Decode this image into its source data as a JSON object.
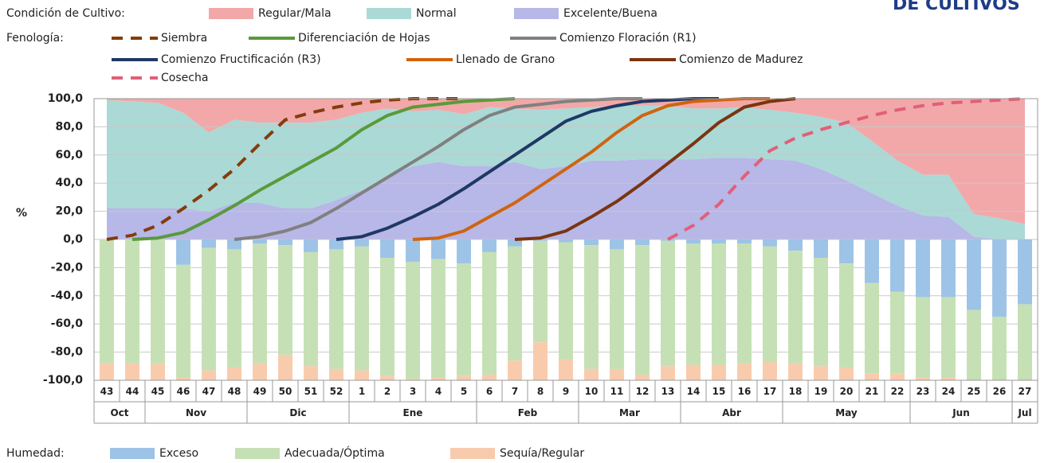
{
  "chart_data": {
    "type": "combo",
    "corner_title": "DE CULTIVOS",
    "y_label": "%",
    "condition_legend_title": "Condición de Cultivo:",
    "phenology_legend_title": "Fenología:",
    "humidity_legend_title": "Humedad:",
    "categories": [
      "43",
      "44",
      "45",
      "46",
      "47",
      "48",
      "49",
      "50",
      "51",
      "52",
      "1",
      "2",
      "3",
      "4",
      "5",
      "6",
      "7",
      "8",
      "9",
      "10",
      "11",
      "12",
      "13",
      "14",
      "15",
      "16",
      "17",
      "18",
      "19",
      "20",
      "21",
      "22",
      "23",
      "24",
      "25",
      "26",
      "27"
    ],
    "months": [
      "Oct",
      null,
      "Nov",
      null,
      null,
      null,
      "Dic",
      null,
      null,
      null,
      "Ene",
      null,
      null,
      null,
      null,
      "Feb",
      null,
      null,
      null,
      "Mar",
      null,
      null,
      null,
      "Abr",
      null,
      null,
      null,
      "May",
      null,
      null,
      null,
      null,
      "Jun",
      null,
      null,
      null,
      "Jul"
    ],
    "ylim": [
      -100,
      100
    ],
    "yticks": [
      {
        "value": 100,
        "label": "100,0"
      },
      {
        "value": 80,
        "label": "80,0"
      },
      {
        "value": 60,
        "label": "60,0"
      },
      {
        "value": 40,
        "label": "40,0"
      },
      {
        "value": 20,
        "label": "20,0"
      },
      {
        "value": 0,
        "label": "0,0"
      },
      {
        "value": -20,
        "label": "-20,0"
      },
      {
        "value": -40,
        "label": "-40,0"
      },
      {
        "value": -60,
        "label": "-60,0"
      },
      {
        "value": -80,
        "label": "-80,0"
      },
      {
        "value": -100,
        "label": "-100,0"
      }
    ],
    "grid": true,
    "series": [
      {
        "name": "Regular/Mala",
        "type": "area",
        "color": "#f2a8a8",
        "values": [
          1,
          2,
          3,
          10,
          24,
          15,
          17,
          17,
          17,
          15,
          10,
          7,
          9,
          8,
          11,
          6,
          7,
          8,
          7,
          6,
          5,
          5,
          5,
          7,
          7,
          6,
          8,
          10,
          13,
          17,
          30,
          44,
          54,
          54,
          82,
          85,
          89
        ]
      },
      {
        "name": "Normal",
        "type": "area",
        "color": "#aad9d6",
        "values": [
          77,
          76,
          75,
          68,
          56,
          59,
          57,
          61,
          61,
          57,
          55,
          48,
          39,
          37,
          37,
          42,
          38,
          42,
          41,
          38,
          39,
          38,
          38,
          36,
          35,
          36,
          35,
          34,
          37,
          41,
          37,
          32,
          29,
          30,
          16,
          15,
          11
        ]
      },
      {
        "name": "Excelente/Buena",
        "type": "area",
        "color": "#b7b7e8",
        "values": [
          22,
          22,
          22,
          22,
          20,
          26,
          26,
          22,
          22,
          28,
          35,
          45,
          52,
          55,
          52,
          52,
          55,
          50,
          52,
          56,
          56,
          57,
          57,
          57,
          58,
          58,
          57,
          56,
          50,
          42,
          33,
          24,
          17,
          16,
          2,
          0,
          0
        ]
      },
      {
        "name": "Exceso",
        "type": "bar",
        "color": "#9dc3e6",
        "values": [
          0,
          0,
          0,
          -18,
          -6,
          -7,
          -3,
          -4,
          -9,
          -7,
          -5,
          -13,
          -16,
          -14,
          -17,
          -9,
          -5,
          -1,
          -2,
          -4,
          -7,
          -4,
          -1,
          -3,
          -3,
          -3,
          -5,
          -8,
          -13,
          -17,
          -31,
          -37,
          -41,
          -41,
          -50,
          -55,
          -46
        ]
      },
      {
        "name": "Adecuada/Óptima",
        "type": "bar",
        "color": "#c5e0b4",
        "values": [
          -88,
          -88,
          -88,
          -80,
          -87,
          -84,
          -85,
          -78,
          -81,
          -85,
          -88,
          -84,
          -83,
          -84,
          -80,
          -87,
          -81,
          -72,
          -83,
          -88,
          -85,
          -92,
          -89,
          -86,
          -86,
          -85,
          -82,
          -80,
          -77,
          -74,
          -64,
          -58,
          -57,
          -57,
          -50,
          -45,
          -54
        ]
      },
      {
        "name": "Sequía/Regular",
        "type": "bar",
        "color": "#f8cbad",
        "values": [
          -12,
          -12,
          -12,
          -2,
          -7,
          -9,
          -12,
          -18,
          -10,
          -8,
          -7,
          -3,
          -1,
          -2,
          -3,
          -4,
          -14,
          -27,
          -15,
          -8,
          -8,
          -4,
          -10,
          -11,
          -11,
          -12,
          -13,
          -12,
          -10,
          -9,
          -5,
          -5,
          -2,
          -2,
          0,
          0,
          0
        ]
      },
      {
        "name": "Siembra",
        "type": "line",
        "dash": true,
        "color": "#843c0c",
        "values": [
          0,
          3,
          10,
          22,
          35,
          50,
          68,
          85,
          90,
          94,
          97,
          99,
          100,
          100,
          100,
          null,
          null,
          null,
          null,
          null,
          null,
          null,
          null,
          null,
          null,
          null,
          null,
          null,
          null,
          null,
          null,
          null,
          null,
          null,
          null,
          null,
          null
        ]
      },
      {
        "name": "Diferenciación de Hojas",
        "type": "line",
        "dash": false,
        "color": "#5a9a3a",
        "values": [
          null,
          0,
          1,
          5,
          14,
          24,
          35,
          45,
          55,
          65,
          78,
          88,
          94,
          96,
          98,
          99,
          100,
          null,
          null,
          null,
          null,
          null,
          null,
          null,
          null,
          null,
          null,
          null,
          null,
          null,
          null,
          null,
          null,
          null,
          null,
          null,
          null
        ]
      },
      {
        "name": "Comienzo Floración (R1)",
        "type": "line",
        "dash": false,
        "color": "#808080",
        "values": [
          null,
          null,
          null,
          null,
          null,
          0,
          2,
          6,
          12,
          22,
          33,
          44,
          55,
          66,
          78,
          88,
          94,
          96,
          98,
          99,
          100,
          100,
          null,
          null,
          null,
          null,
          null,
          null,
          null,
          null,
          null,
          null,
          null,
          null,
          null,
          null,
          null
        ]
      },
      {
        "name": "Comienzo Fructificación (R3)",
        "type": "line",
        "dash": false,
        "color": "#1f3864",
        "values": [
          null,
          null,
          null,
          null,
          null,
          null,
          null,
          null,
          null,
          0,
          2,
          8,
          16,
          25,
          36,
          48,
          60,
          72,
          84,
          91,
          95,
          98,
          99,
          100,
          100,
          null,
          null,
          null,
          null,
          null,
          null,
          null,
          null,
          null,
          null,
          null,
          null
        ]
      },
      {
        "name": "Llenado de Grano",
        "type": "line",
        "dash": false,
        "color": "#d0640f",
        "values": [
          null,
          null,
          null,
          null,
          null,
          null,
          null,
          null,
          null,
          null,
          null,
          null,
          0,
          1,
          6,
          16,
          26,
          38,
          50,
          62,
          76,
          88,
          95,
          98,
          99,
          100,
          100,
          null,
          null,
          null,
          null,
          null,
          null,
          null,
          null,
          null,
          null
        ]
      },
      {
        "name": "Comienzo de Madurez",
        "type": "line",
        "dash": false,
        "color": "#7a3510",
        "values": [
          null,
          null,
          null,
          null,
          null,
          null,
          null,
          null,
          null,
          null,
          null,
          null,
          null,
          null,
          null,
          null,
          0,
          1,
          6,
          16,
          27,
          40,
          54,
          68,
          83,
          94,
          98,
          100,
          null,
          null,
          null,
          null,
          null,
          null,
          null,
          null,
          null
        ]
      },
      {
        "name": "Cosecha",
        "type": "line",
        "dash": true,
        "color": "#e06078",
        "values": [
          null,
          null,
          null,
          null,
          null,
          null,
          null,
          null,
          null,
          null,
          null,
          null,
          null,
          null,
          null,
          null,
          null,
          null,
          null,
          null,
          null,
          null,
          0,
          10,
          25,
          45,
          63,
          72,
          78,
          83,
          88,
          92,
          95,
          97,
          98,
          99,
          100
        ]
      }
    ]
  }
}
